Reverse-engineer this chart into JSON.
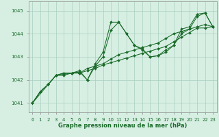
{
  "background_color": "#d7efe3",
  "grid_color": "#a8cfc0",
  "line_color": "#1a6b2a",
  "marker_color": "#1a6b2a",
  "xlabel": "Graphe pression niveau de la mer (hPa)",
  "xlim": [
    -0.5,
    23.5
  ],
  "ylim": [
    1040.6,
    1045.4
  ],
  "yticks": [
    1041,
    1042,
    1043,
    1044,
    1045
  ],
  "xticks": [
    0,
    1,
    2,
    3,
    4,
    5,
    6,
    7,
    8,
    9,
    10,
    11,
    12,
    13,
    14,
    15,
    16,
    17,
    18,
    19,
    20,
    21,
    22,
    23
  ],
  "series": [
    {
      "x": [
        0,
        1,
        2,
        3,
        4,
        5,
        6,
        7,
        8,
        9,
        10,
        11,
        12,
        13,
        14,
        15,
        16,
        17,
        18,
        19,
        20,
        21,
        22,
        23
      ],
      "y": [
        1041.0,
        1041.5,
        1041.8,
        1042.2,
        1042.2,
        1042.3,
        1042.4,
        1042.0,
        1042.7,
        1043.2,
        1044.5,
        1044.5,
        1044.0,
        1043.5,
        1043.35,
        1043.0,
        1043.05,
        1043.3,
        1043.5,
        1044.2,
        1044.3,
        1044.85,
        1044.9,
        1044.3
      ]
    },
    {
      "x": [
        0,
        1,
        2,
        3,
        4,
        5,
        6,
        7,
        8,
        9,
        10,
        11,
        12,
        13,
        14,
        15,
        16,
        17,
        18,
        19,
        20,
        21,
        22,
        23
      ],
      "y": [
        1041.0,
        1041.5,
        1041.8,
        1042.2,
        1042.25,
        1042.3,
        1042.3,
        1042.4,
        1042.5,
        1042.65,
        1042.75,
        1042.85,
        1042.95,
        1043.05,
        1043.15,
        1043.25,
        1043.35,
        1043.45,
        1043.65,
        1043.85,
        1044.05,
        1044.25,
        1044.25,
        1044.3
      ]
    },
    {
      "x": [
        0,
        3,
        4,
        5,
        6,
        7,
        8,
        9,
        10,
        11,
        12,
        13,
        14,
        15,
        16,
        17,
        18,
        19,
        20,
        21,
        22,
        23
      ],
      "y": [
        1041.0,
        1042.2,
        1042.3,
        1042.3,
        1042.35,
        1042.0,
        1042.6,
        1043.0,
        1044.15,
        1044.5,
        1044.0,
        1043.5,
        1043.3,
        1043.0,
        1043.05,
        1043.2,
        1043.5,
        1044.0,
        1044.2,
        1044.75,
        1044.9,
        1044.3
      ]
    },
    {
      "x": [
        0,
        1,
        2,
        3,
        4,
        5,
        6,
        7,
        8,
        9,
        10,
        11,
        12,
        13,
        14,
        15,
        16,
        17,
        18,
        19,
        20,
        21,
        22,
        23
      ],
      "y": [
        1041.0,
        1041.5,
        1041.8,
        1042.2,
        1042.3,
        1042.3,
        1042.3,
        1042.5,
        1042.6,
        1042.7,
        1042.9,
        1043.1,
        1043.2,
        1043.3,
        1043.4,
        1043.5,
        1043.6,
        1043.8,
        1044.0,
        1044.1,
        1044.2,
        1044.3,
        1044.4,
        1044.3
      ]
    }
  ]
}
